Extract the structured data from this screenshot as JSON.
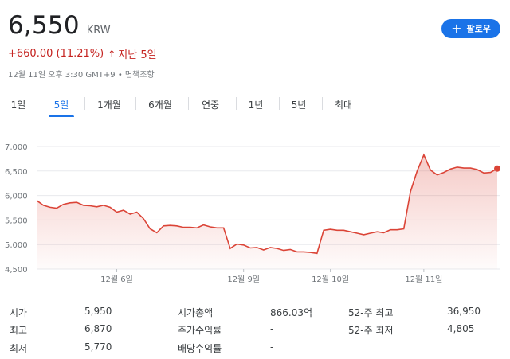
{
  "quote": {
    "price": "6,550",
    "currency": "KRW",
    "change": "+660.00 (11.21%)",
    "change_arrow": "↑",
    "change_period": "지난 5일",
    "timestamp": "12월 11일 오후 3:30 GMT+9 • 면책조항"
  },
  "follow_button": {
    "plus": "+",
    "label": "팔로우"
  },
  "tabs": [
    {
      "label": "1일",
      "active": false
    },
    {
      "label": "5일",
      "active": true
    },
    {
      "label": "1개월",
      "active": false
    },
    {
      "label": "6개월",
      "active": false
    },
    {
      "label": "연중",
      "active": false
    },
    {
      "label": "1년",
      "active": false
    },
    {
      "label": "5년",
      "active": false
    },
    {
      "label": "최대",
      "active": false
    }
  ],
  "colors": {
    "line": "#db4437",
    "accent": "#1a73e8",
    "negative": "#c5221f"
  },
  "chart_data": {
    "type": "line",
    "ylim": [
      4500,
      7000
    ],
    "y_ticks": [
      4500,
      5000,
      5500,
      6000,
      6500,
      7000
    ],
    "y_tick_labels": [
      "4,500",
      "5,000",
      "5,500",
      "6,000",
      "6,500",
      "7,000"
    ],
    "x_tick_labels": [
      "12월 6일",
      "12월 9일",
      "12월 10일",
      "12월 11일"
    ],
    "x_tick_index": [
      12,
      31,
      44,
      58
    ],
    "series": [
      {
        "values": [
          5900,
          5800,
          5760,
          5740,
          5820,
          5850,
          5860,
          5800,
          5790,
          5770,
          5800,
          5760,
          5660,
          5700,
          5620,
          5660,
          5530,
          5320,
          5240,
          5380,
          5390,
          5380,
          5350,
          5350,
          5340,
          5400,
          5360,
          5340,
          5340,
          4920,
          5010,
          4990,
          4930,
          4940,
          4890,
          4940,
          4920,
          4880,
          4900,
          4850,
          4850,
          4840,
          4820,
          5290,
          5310,
          5290,
          5290,
          5260,
          5230,
          5200,
          5230,
          5260,
          5240,
          5300,
          5300,
          5320,
          6080,
          6500,
          6830,
          6520,
          6420,
          6470,
          6540,
          6580,
          6560,
          6560,
          6530,
          6460,
          6470,
          6550
        ]
      }
    ]
  },
  "stats": [
    {
      "label": "시가",
      "value": "5,950"
    },
    {
      "label": "최고",
      "value": "6,870"
    },
    {
      "label": "최저",
      "value": "5,770"
    },
    {
      "label": "시가총액",
      "value": "866.03억"
    },
    {
      "label": "주가수익률",
      "value": "-"
    },
    {
      "label": "배당수익률",
      "value": "-"
    },
    {
      "label": "52-주 최고",
      "value": "36,950"
    },
    {
      "label": "52-주 최저",
      "value": "4,805"
    }
  ]
}
